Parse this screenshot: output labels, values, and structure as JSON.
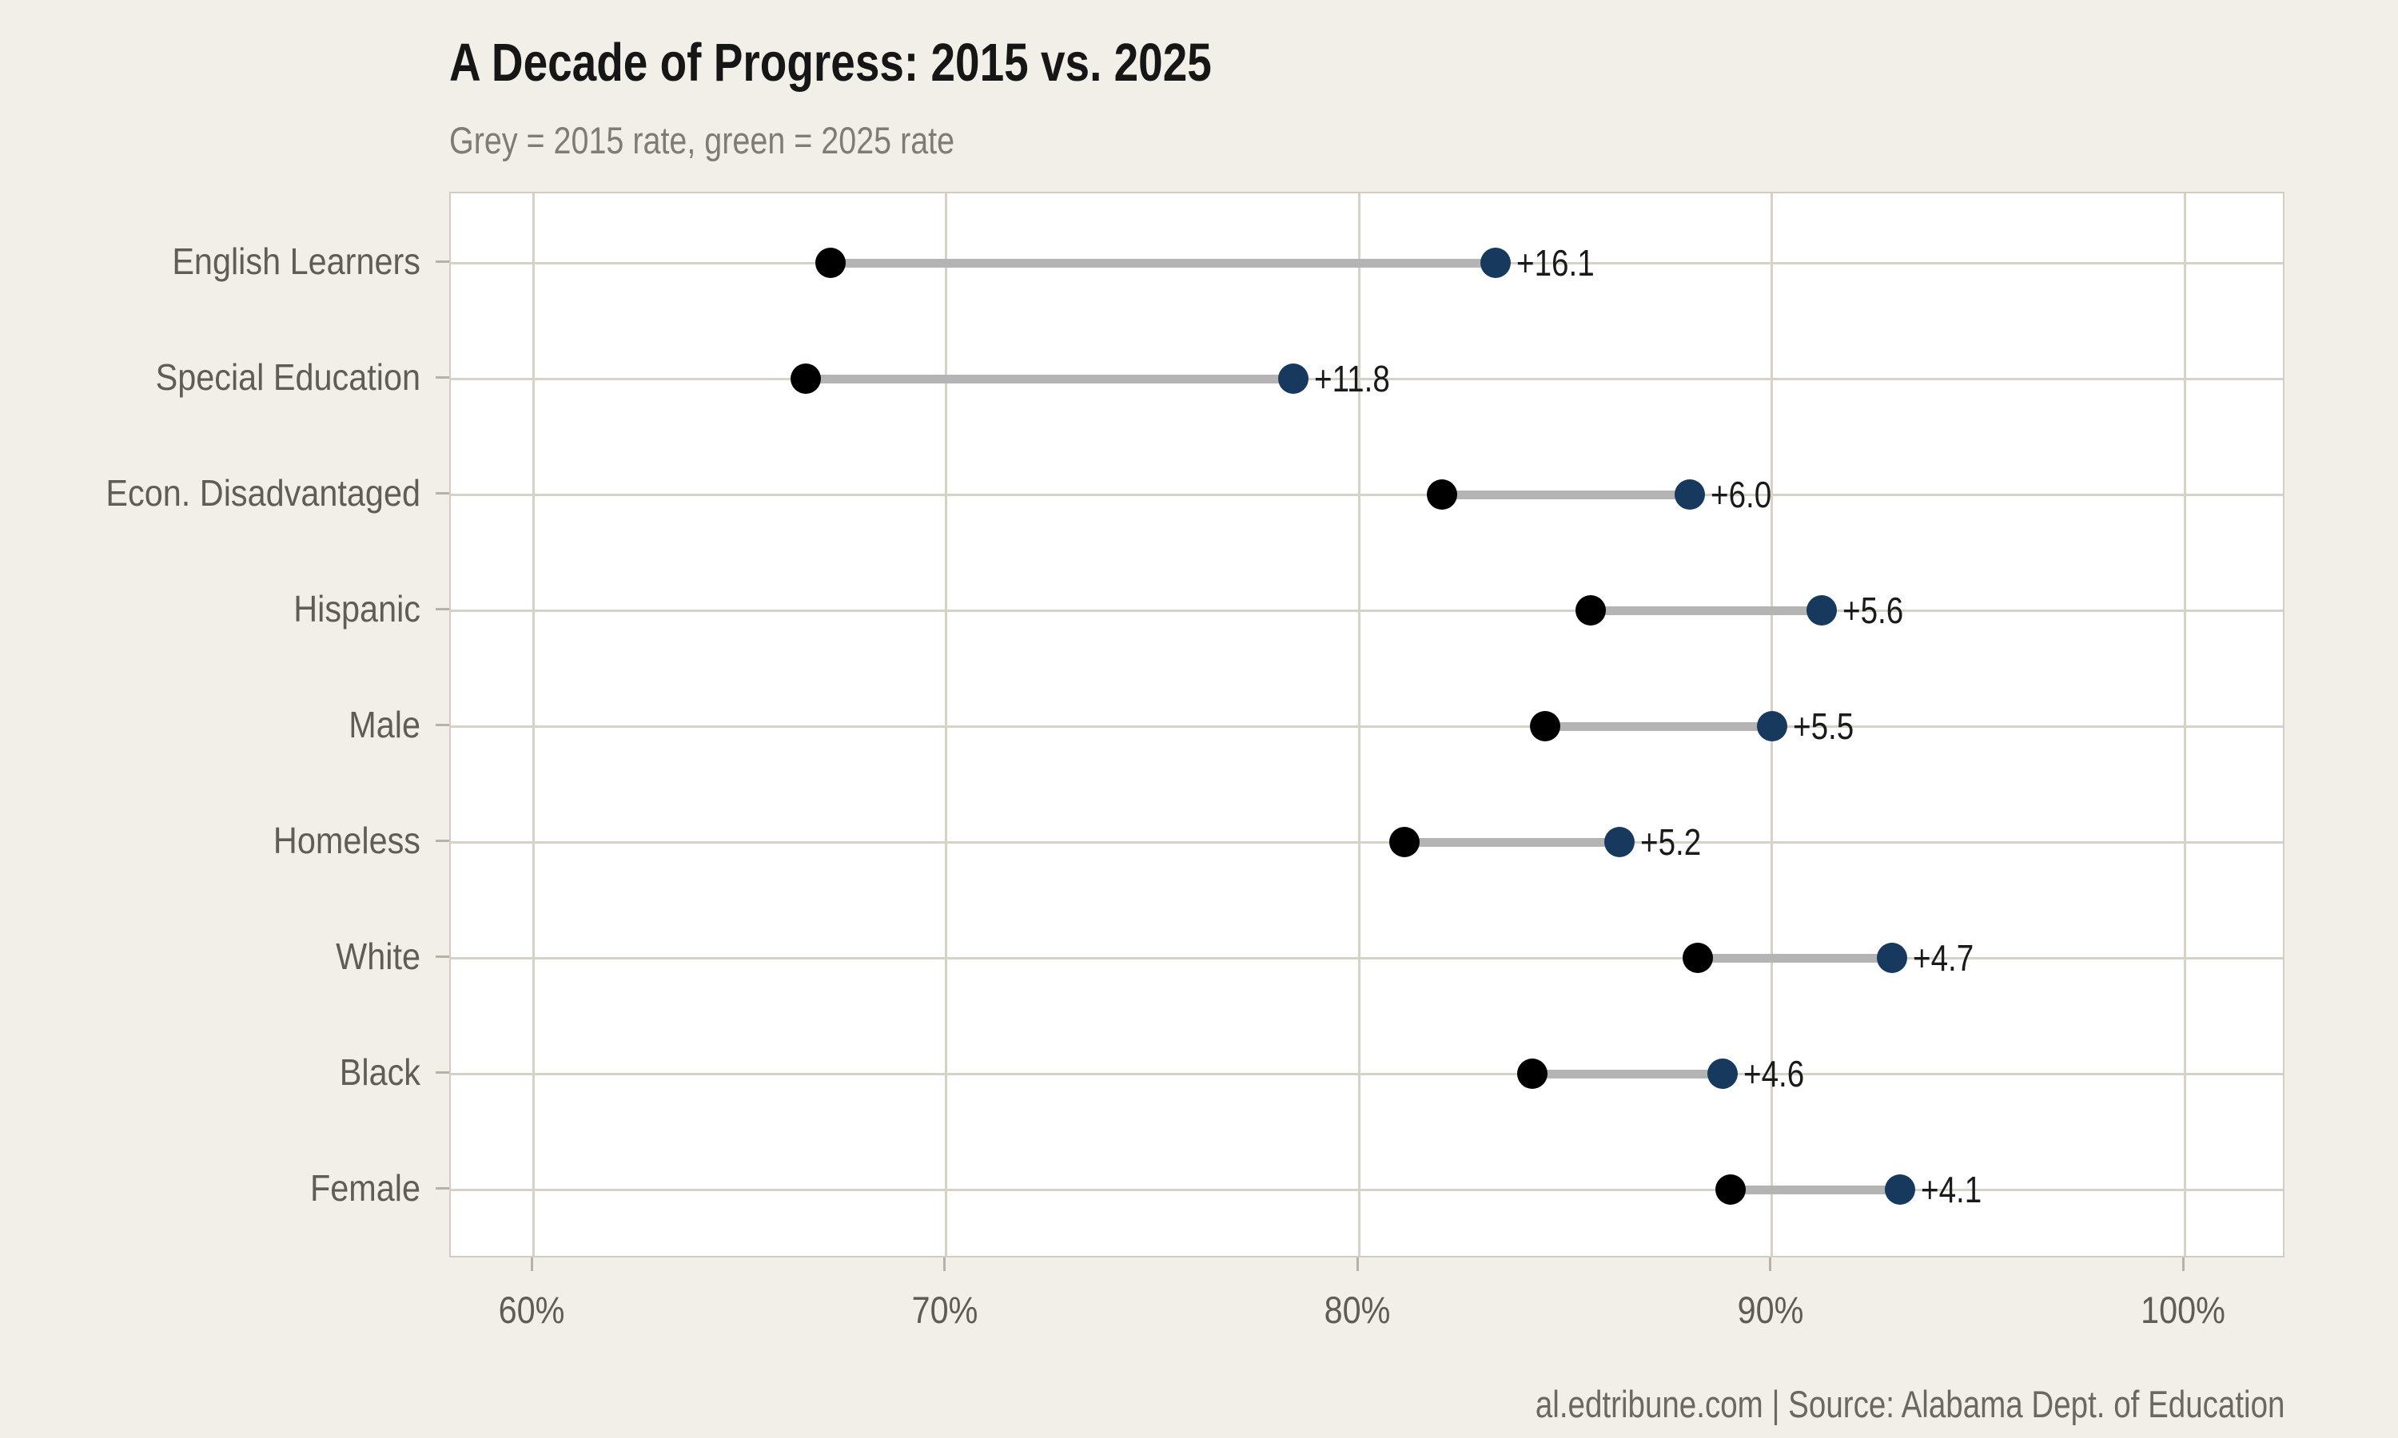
{
  "page": {
    "background_color": "#f2efe8",
    "panel_background_color": "#ffffff"
  },
  "header": {
    "title": "A Decade of Progress: 2015 vs. 2025",
    "subtitle": "Grey = 2015 rate, green = 2025 rate"
  },
  "footer": {
    "credit": "al.edtribune.com | Source: Alabama Dept. of Education"
  },
  "chart_data": {
    "type": "dumbbell",
    "orientation": "horizontal",
    "title": "A Decade of Progress: 2015 vs. 2025",
    "subtitle": "Grey = 2015 rate, green = 2025 rate",
    "categories": [
      "English Learners",
      "Special Education",
      "Econ. Disadvantaged",
      "Hispanic",
      "Male",
      "Homeless",
      "White",
      "Black",
      "Female"
    ],
    "series": [
      {
        "name": "2015 rate",
        "color": "#000000",
        "values": [
          67.2,
          66.6,
          82.0,
          85.6,
          84.5,
          81.1,
          88.2,
          84.2,
          89.0
        ]
      },
      {
        "name": "2025 rate",
        "color": "#17395e",
        "values": [
          83.3,
          78.4,
          88.0,
          91.2,
          90.0,
          86.3,
          92.9,
          88.8,
          93.1
        ]
      }
    ],
    "delta_labels": [
      "+16.1",
      "+11.8",
      "+6.0",
      "+5.6",
      "+5.5",
      "+5.2",
      "+4.7",
      "+4.6",
      "+4.1"
    ],
    "x_ticks": [
      {
        "value": 60,
        "label": "60%"
      },
      {
        "value": 70,
        "label": "70%"
      },
      {
        "value": 80,
        "label": "80%"
      },
      {
        "value": 90,
        "label": "90%"
      },
      {
        "value": 100,
        "label": "100%"
      }
    ],
    "xlim": [
      58.0,
      102.45
    ],
    "xlabel": "",
    "ylabel": "",
    "grid": true,
    "legend_position": "none",
    "connector_color": "#b4b4b4",
    "gridline_color": "#d7d2c8",
    "annotation_color": "#1a1a1a",
    "axis_text_color": "#5f5b55"
  }
}
